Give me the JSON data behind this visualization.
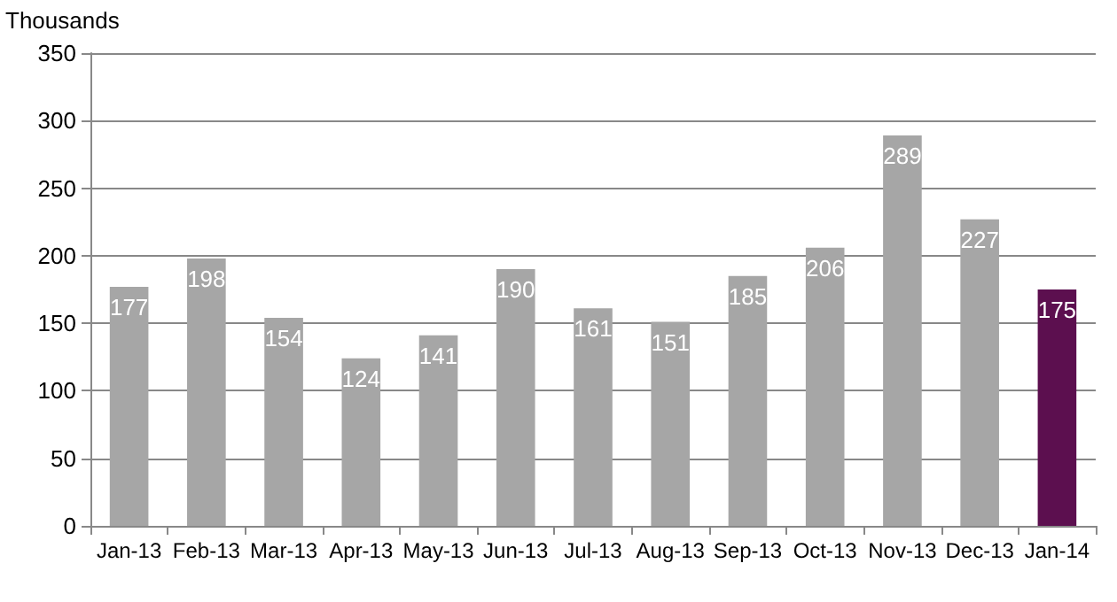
{
  "chart_data": {
    "type": "bar",
    "ylabel": "Thousands",
    "categories": [
      "Jan-13",
      "Feb-13",
      "Mar-13",
      "Apr-13",
      "May-13",
      "Jun-13",
      "Jul-13",
      "Aug-13",
      "Sep-13",
      "Oct-13",
      "Nov-13",
      "Dec-13",
      "Jan-14"
    ],
    "values": [
      177,
      198,
      154,
      124,
      141,
      190,
      161,
      151,
      185,
      206,
      289,
      227,
      175
    ],
    "colors": [
      "#a6a6a6",
      "#a6a6a6",
      "#a6a6a6",
      "#a6a6a6",
      "#a6a6a6",
      "#a6a6a6",
      "#a6a6a6",
      "#a6a6a6",
      "#a6a6a6",
      "#a6a6a6",
      "#a6a6a6",
      "#a6a6a6",
      "#5c0f4f"
    ],
    "ylim": [
      0,
      350
    ],
    "yticks": [
      0,
      50,
      100,
      150,
      200,
      250,
      300,
      350
    ],
    "grid": "y",
    "data_labels": true
  }
}
